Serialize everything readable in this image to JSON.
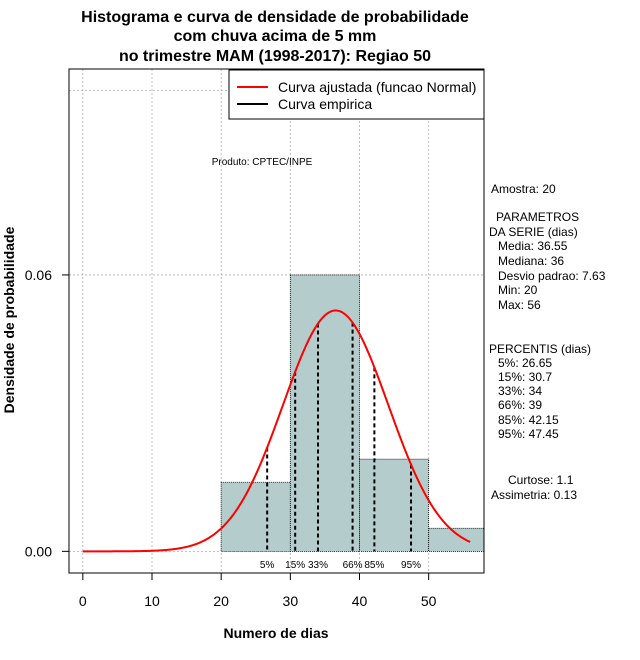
{
  "chart_data": {
    "type": "bar",
    "title_lines": [
      "Histograma e curva de densidade de probabilidade",
      "com chuva acima de 5 mm",
      "no trimestre MAM (1998-2017): Regiao 50"
    ],
    "xlabel": "Numero de dias",
    "ylabel": "Densidade de probabilidade",
    "xlim": [
      -2,
      58
    ],
    "ylim": [
      -0.0047,
      0.1047
    ],
    "x_ticks": [
      0,
      10,
      20,
      30,
      40,
      50
    ],
    "x_tick_labels": [
      "0",
      "10",
      "20",
      "30",
      "40",
      "50"
    ],
    "y_ticks": [
      0.0,
      0.06
    ],
    "y_tick_labels": [
      "0.00",
      "0.06"
    ],
    "grid_x": [
      0,
      10,
      20,
      30,
      40,
      50
    ],
    "grid_y": [
      0.0,
      0.06
    ],
    "grid_extra_y": [
      0.1
    ],
    "bins": [
      {
        "start": 20,
        "end": 30,
        "density": 0.015
      },
      {
        "start": 30,
        "end": 40,
        "density": 0.06
      },
      {
        "start": 40,
        "end": 50,
        "density": 0.02
      },
      {
        "start": 50,
        "end": 60,
        "density": 0.005
      }
    ],
    "normal_curve": {
      "mean": 36.55,
      "sd": 7.63,
      "x_from": 0,
      "x_to": 56
    },
    "percentile_lines": [
      {
        "x": 26.65,
        "label": "5%"
      },
      {
        "x": 30.7,
        "label": "15%"
      },
      {
        "x": 34,
        "label": "33%"
      },
      {
        "x": 39,
        "label": "66%"
      },
      {
        "x": 42.15,
        "label": "85%"
      },
      {
        "x": 47.45,
        "label": "95%"
      }
    ],
    "legend": {
      "position": "top-right",
      "entries": [
        {
          "label": "Curva ajustada (funcao Normal)",
          "color": "#ff0000"
        },
        {
          "label": "Curva empirica",
          "color": "#000000"
        }
      ]
    },
    "product_label": "Produto: CPTEC/INPE"
  },
  "side_panel": {
    "amostra": "Amostra: 20",
    "param_title_1": "PARAMETROS",
    "param_title_2": "DA SERIE (dias)",
    "media": "Media: 36.55",
    "mediana": "Mediana: 36",
    "desvio": "Desvio padrao: 7.63",
    "min": "Min: 20",
    "max": "Max: 56",
    "percentis_title": "PERCENTIS (dias)",
    "p5": "5%: 26.65",
    "p15": "15%: 30.7",
    "p33": "33%: 34",
    "p66": "66%: 39",
    "p85": "85%: 42.15",
    "p95": "95%: 47.45",
    "curtose": "Curtose: 1.1",
    "assimetria": "Assimetria: 0.13"
  },
  "colors": {
    "bar_fill": "#b4cccc",
    "curve": "#ff0000",
    "grid": "#b0b0b0"
  }
}
